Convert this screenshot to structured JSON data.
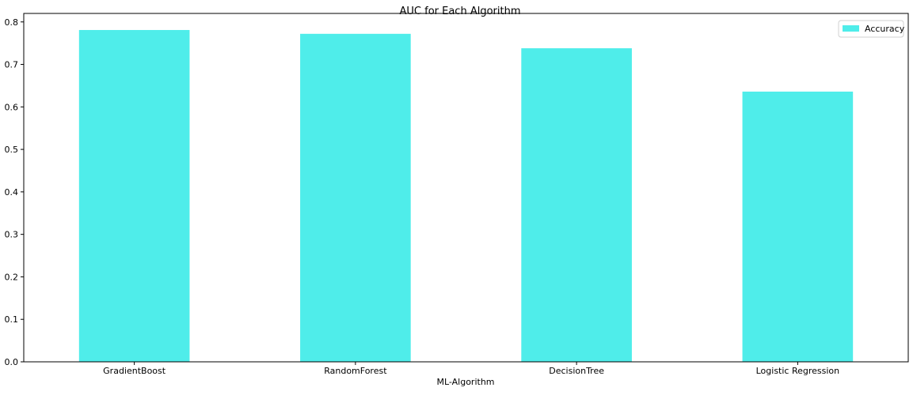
{
  "chart_data": {
    "type": "bar",
    "title": "AUC for Each Algorithm",
    "xlabel": "ML-Algorithm",
    "ylabel": "",
    "categories": [
      "GradientBoost",
      "RandomForest",
      "DecisionTree",
      "Logistic Regression"
    ],
    "series": [
      {
        "name": "Accuracy",
        "values": [
          0.781,
          0.772,
          0.738,
          0.636
        ],
        "color": "#4fedea"
      }
    ],
    "ylim": [
      0,
      0.82
    ],
    "yticks": [
      "0.0",
      "0.1",
      "0.2",
      "0.3",
      "0.4",
      "0.5",
      "0.6",
      "0.7",
      "0.8"
    ],
    "grid": false,
    "legend": "top-right"
  }
}
